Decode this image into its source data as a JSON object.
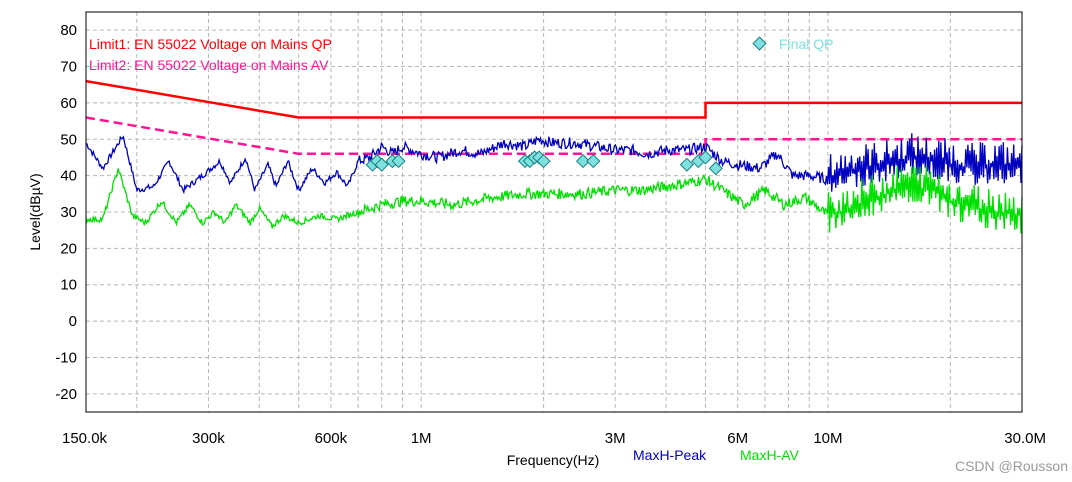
{
  "chart_data": {
    "type": "line",
    "title": "",
    "xlabel": "Frequency(Hz)",
    "ylabel": "Level(dBµV)",
    "x_scale": "log",
    "xlim": [
      150000,
      30000000
    ],
    "ylim": [
      -25,
      85
    ],
    "grid": true,
    "y_ticks": [
      80,
      70,
      60,
      50,
      40,
      30,
      20,
      10,
      0,
      -10,
      -20
    ],
    "x_ticks": [
      {
        "value": 150000,
        "label": "150.0k"
      },
      {
        "value": 300000,
        "label": "300k"
      },
      {
        "value": 600000,
        "label": "600k"
      },
      {
        "value": 1000000,
        "label": "1M"
      },
      {
        "value": 3000000,
        "label": "3M"
      },
      {
        "value": 6000000,
        "label": "6M"
      },
      {
        "value": 10000000,
        "label": "10M"
      },
      {
        "value": 30000000,
        "label": "30.0M"
      }
    ],
    "limits": [
      {
        "label": "Limit1:  EN 55022 Voltage on Mains QP",
        "color": "#ff0000",
        "style": "solid",
        "points": [
          [
            150000,
            66
          ],
          [
            500000,
            56
          ],
          [
            5000000,
            56
          ],
          [
            5000000,
            60
          ],
          [
            30000000,
            60
          ]
        ]
      },
      {
        "label": "Limit2:  EN 55022 Voltage on Mains AV",
        "color": "#ff1493",
        "style": "dashed",
        "points": [
          [
            150000,
            56
          ],
          [
            500000,
            46
          ],
          [
            5000000,
            46
          ],
          [
            5000000,
            50
          ],
          [
            30000000,
            50
          ]
        ]
      }
    ],
    "series": [
      {
        "name": "MaxH-Peak",
        "color": "#0000c0",
        "x": [
          150000,
          165000,
          185000,
          200000,
          220000,
          240000,
          260000,
          290000,
          320000,
          340000,
          370000,
          390000,
          420000,
          440000,
          470000,
          500000,
          540000,
          580000,
          620000,
          660000,
          700000,
          750000,
          800000,
          850000,
          900000,
          1000000,
          1100000,
          1250000,
          1400000,
          1600000,
          1800000,
          1950000,
          2100000,
          2400000,
          2700000,
          3000000,
          3300000,
          3600000,
          4000000,
          4500000,
          5000000,
          5500000,
          6000000,
          6800000,
          7500000,
          8200000,
          9000000,
          10000000,
          12000000,
          14000000,
          16000000,
          18000000,
          20000000,
          23000000,
          26000000,
          30000000
        ],
        "values": [
          49,
          42,
          51,
          36,
          37,
          44,
          36,
          40,
          44,
          38,
          45,
          36,
          43,
          37,
          44,
          36,
          42,
          38,
          41,
          37,
          44,
          45,
          48,
          46,
          48,
          46,
          45,
          47,
          46,
          49,
          48,
          50,
          49,
          49,
          48,
          47,
          47,
          46,
          47,
          47,
          48,
          44,
          43,
          42,
          46,
          40,
          40,
          39,
          42,
          43,
          45,
          44,
          43,
          42,
          43,
          42
        ]
      },
      {
        "name": "MaxH-AV",
        "color": "#00e000",
        "x": [
          150000,
          165000,
          180000,
          195000,
          210000,
          230000,
          250000,
          270000,
          290000,
          310000,
          330000,
          350000,
          380000,
          400000,
          430000,
          460000,
          500000,
          560000,
          620000,
          700000,
          800000,
          900000,
          1000000,
          1200000,
          1500000,
          1800000,
          2100000,
          2500000,
          3000000,
          3500000,
          4000000,
          4500000,
          5000000,
          5500000,
          6200000,
          7000000,
          7800000,
          8800000,
          10000000,
          12000000,
          14000000,
          16000000,
          18000000,
          20000000,
          23000000,
          26000000,
          30000000
        ],
        "values": [
          28,
          28,
          42,
          29,
          27,
          33,
          27,
          32,
          27,
          30,
          27,
          32,
          27,
          31,
          26,
          29,
          27,
          29,
          28,
          30,
          32,
          33,
          33,
          32,
          34,
          35,
          35,
          35,
          36,
          36,
          37,
          38,
          39,
          36,
          32,
          36,
          32,
          34,
          29,
          32,
          35,
          37,
          36,
          33,
          31,
          30,
          29
        ]
      }
    ],
    "markers": {
      "label": "Final QP",
      "color": "#7fe0e0",
      "points": [
        [
          760000,
          43
        ],
        [
          780000,
          44
        ],
        [
          800000,
          43
        ],
        [
          850000,
          44
        ],
        [
          880000,
          44
        ],
        [
          1800000,
          44
        ],
        [
          1850000,
          44
        ],
        [
          1900000,
          45
        ],
        [
          1950000,
          45
        ],
        [
          2000000,
          44
        ],
        [
          2500000,
          44
        ],
        [
          2650000,
          44
        ],
        [
          4500000,
          43
        ],
        [
          4800000,
          44
        ],
        [
          5000000,
          45
        ],
        [
          5300000,
          42
        ]
      ]
    },
    "watermark": "CSDN @Rousson"
  }
}
